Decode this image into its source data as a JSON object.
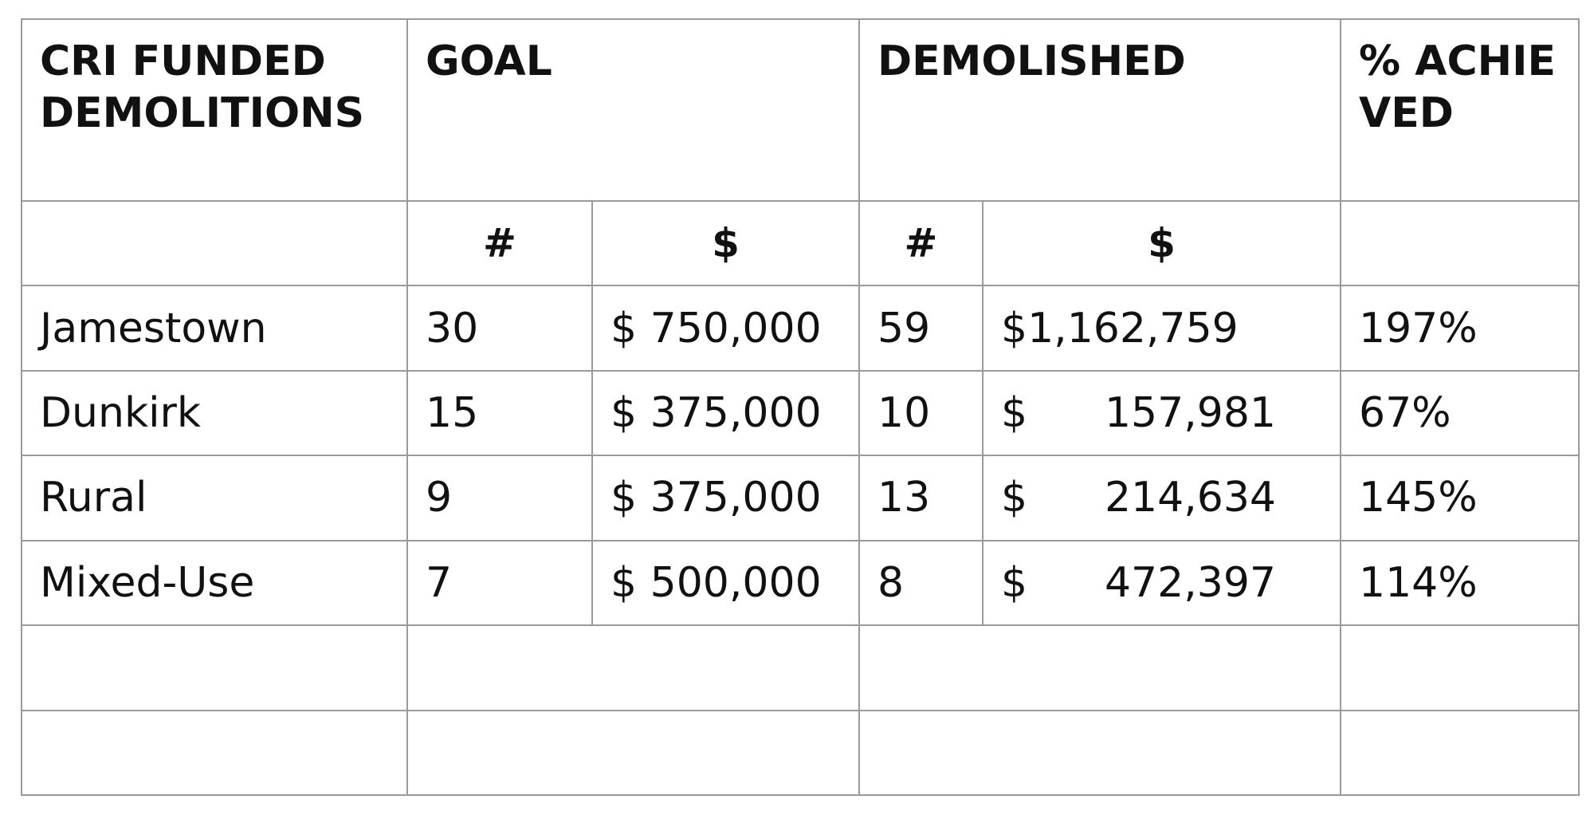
{
  "table": {
    "headers": {
      "col1": "CRI FUNDED DEMOLITIONS",
      "goal": "GOAL",
      "demolished": "DEMOLISHED",
      "pct": "% ACHIEVED"
    },
    "subheaders": {
      "goal_count": "#",
      "goal_amount": "$",
      "demolished_count": "#",
      "demolished_amount": "$"
    },
    "rows": [
      {
        "name": "Jamestown",
        "goal_count": "30",
        "goal_amount": "$ 750,000",
        "demolished_count": "59",
        "demolished_currency": "$1,162,759",
        "demolished_value": "",
        "pct": "197%"
      },
      {
        "name": "Dunkirk",
        "goal_count": "15",
        "goal_amount": "$ 375,000",
        "demolished_count": "10",
        "demolished_currency": "$",
        "demolished_value": "157,981",
        "pct": "67%"
      },
      {
        "name": "Rural",
        "goal_count": "9",
        "goal_amount": "$ 375,000",
        "demolished_count": "13",
        "demolished_currency": "$",
        "demolished_value": "214,634",
        "pct": "145%"
      },
      {
        "name": "Mixed-Use",
        "goal_count": "7",
        "goal_amount": "$ 500,000",
        "demolished_count": "8",
        "demolished_currency": "$",
        "demolished_value": "472,397",
        "pct": "114%"
      }
    ]
  }
}
